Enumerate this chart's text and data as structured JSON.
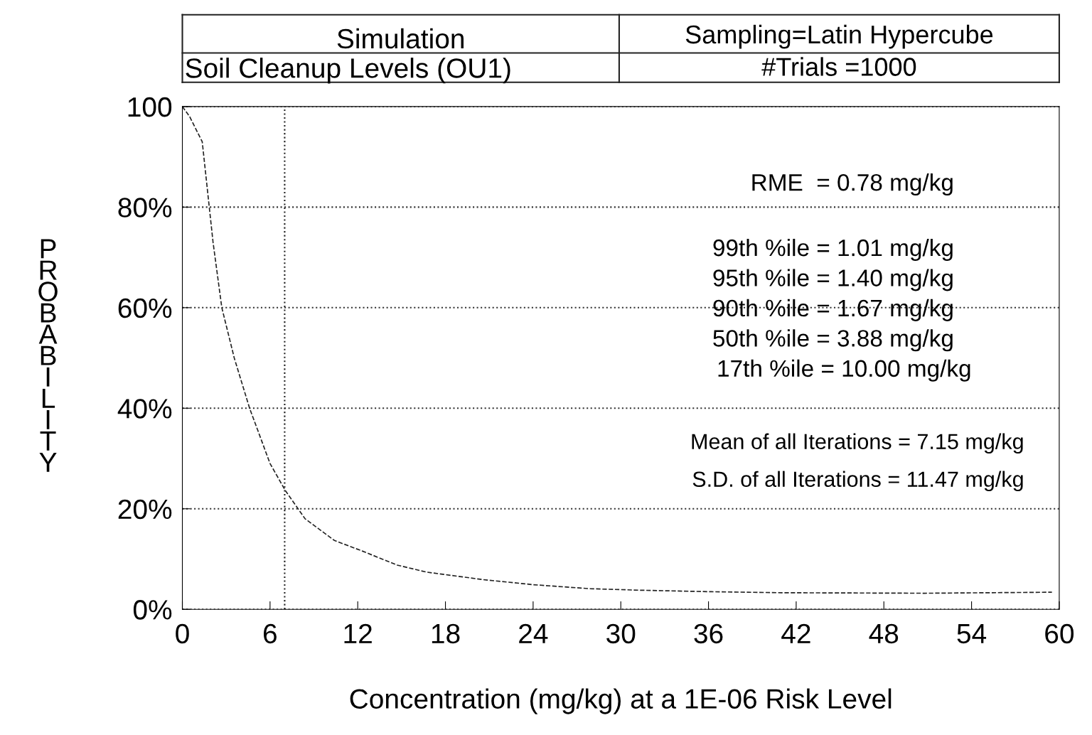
{
  "chart_data": {
    "type": "line",
    "title": "Simulation",
    "subtitle": "Soil Cleanup Levels (OU1)",
    "xlabel": "Concentration (mg/kg) at a 1E-06 Risk Level",
    "ylabel": "PROBABILITY",
    "annotations": [
      "Sampling=Latin Hypercube",
      "#Trials =1000",
      "RME  = 0.78 mg/kg",
      "99th %ile = 1.01 mg/kg",
      "95th %ile = 1.40 mg/kg",
      "90th %ile = 1.67 mg/kg",
      "50th %ile = 3.88 mg/kg",
      "17th %ile = 10.00 mg/kg",
      "Mean of all Iterations = 7.15 mg/kg",
      "S.D. of all Iterations = 11.47 mg/kg"
    ],
    "x": [
      0,
      0.5,
      1.36,
      2.1,
      2.7,
      3.55,
      4.6,
      6.0,
      7.05,
      8.4,
      10.4,
      12.3,
      14.7,
      16.7,
      20.6,
      24,
      27.9,
      31.3,
      36.2,
      41,
      50.8,
      59.5
    ],
    "series": [
      {
        "color": "#222222",
        "values": [
          100,
          98,
          93,
          73,
          60,
          50,
          40,
          29,
          23.6,
          18,
          13.7,
          11.6,
          8.8,
          7.4,
          5.9,
          4.9,
          4.1,
          3.8,
          3.5,
          3.3,
          3.2,
          3.4
        ]
      }
    ],
    "xlim": [
      0,
      60
    ],
    "ylim": [
      0,
      100
    ],
    "xticks": [
      0,
      6,
      12,
      18,
      24,
      30,
      36,
      42,
      48,
      54,
      60
    ],
    "yticks": [
      {
        "value": 0,
        "label": "0%"
      },
      {
        "value": 20,
        "label": "20%"
      },
      {
        "value": 40,
        "label": "40%"
      },
      {
        "value": 60,
        "label": "60%"
      },
      {
        "value": 80,
        "label": "80%"
      },
      100
    ],
    "grid": "y",
    "line_style": "dashed",
    "marker": "none",
    "legend": false,
    "ref_lines": [
      {
        "axis": "x",
        "value": 7,
        "line_style": "dotted",
        "color": "#222222"
      }
    ]
  }
}
